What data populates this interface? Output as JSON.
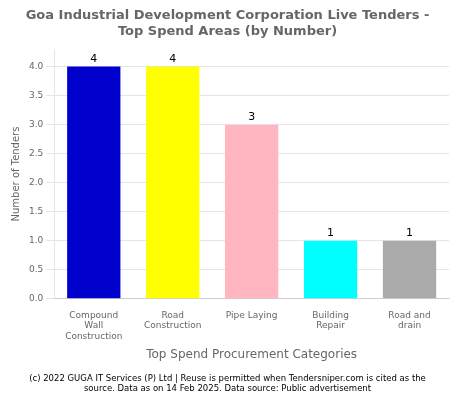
{
  "chart_data": {
    "type": "bar",
    "title": "Goa Industrial Development Corporation Live Tenders -\nTop Spend Areas (by Number)",
    "categories": [
      "Compound\nWall\nConstruction",
      "Road\nConstruction",
      "Pipe Laying",
      "Building\nRepair",
      "Road and\ndrain"
    ],
    "values": [
      4,
      4,
      3,
      1,
      1
    ],
    "colors": [
      "#0000CC",
      "#FFFF00",
      "#FFB6C1",
      "#00FFFF",
      "#AAAAAA"
    ],
    "ylabel": "Number of Tenders",
    "xlabel": "Top Spend Procurement Categories",
    "footnote": "(c) 2022 GUGA IT Services (P) Ltd | Reuse is permitted when Tendersniper.com is cited as the\nsource. Data as on 14 Feb 2025. Data source: Public advertisement",
    "ylim": [
      0,
      4.3
    ],
    "yticks": [
      {
        "value": 0,
        "label": "0.0"
      },
      0.5,
      {
        "value": 1,
        "label": "1.0"
      },
      1.5,
      {
        "value": 2,
        "label": "2.0"
      },
      2.5,
      {
        "value": 3,
        "label": "3.0"
      },
      3.5,
      {
        "value": 4,
        "label": "4.0"
      }
    ],
    "grid": true,
    "data_labels": true
  }
}
